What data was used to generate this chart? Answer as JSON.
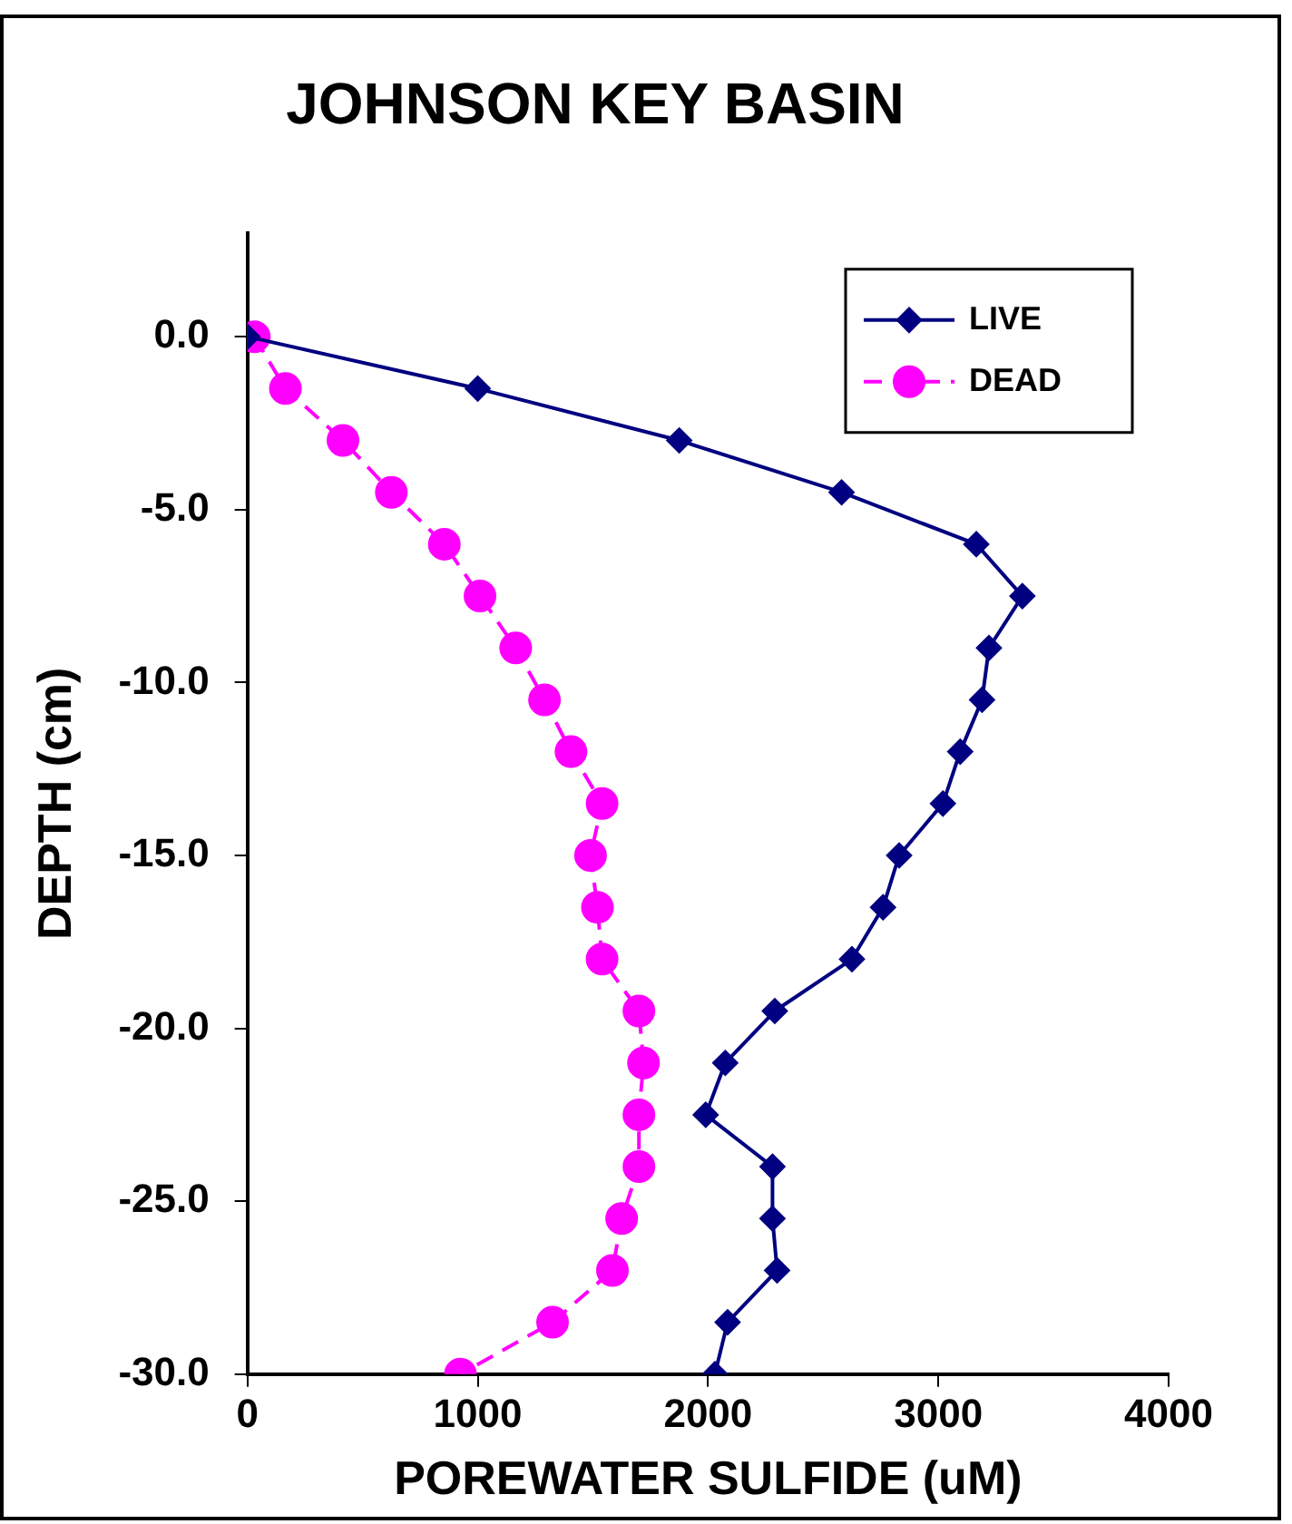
{
  "chart_data": {
    "type": "line",
    "title": "JOHNSON KEY BASIN",
    "xlabel": "POREWATER SULFIDE (uM)",
    "ylabel": "DEPTH (cm)",
    "xlim": [
      0,
      4000
    ],
    "xticks": [
      0,
      1000,
      2000,
      3000,
      4000
    ],
    "ylim": [
      -30,
      3
    ],
    "yticks": [
      {
        "value": 0,
        "label": "0.0"
      },
      {
        "value": -5,
        "label": "-5.0"
      },
      {
        "value": -10,
        "label": "-10.0"
      },
      {
        "value": -15,
        "label": "-15.0"
      },
      {
        "value": -20,
        "label": "-20.0"
      },
      {
        "value": -25,
        "label": "-25.0"
      },
      {
        "value": -30,
        "label": "-30.0"
      }
    ],
    "grid": false,
    "legend": "top right",
    "series": [
      {
        "name": "LIVE",
        "color": "#000080",
        "marker": "diamond",
        "line_style": "solid",
        "x": [
          0,
          1000,
          1875,
          2580,
          3165,
          3365,
          3220,
          3190,
          3095,
          3020,
          2830,
          2760,
          2625,
          2290,
          2075,
          1990,
          2280,
          2280,
          2300,
          2085,
          2030
        ],
        "values": [
          0,
          -1.5,
          -3,
          -4.5,
          -6,
          -7.5,
          -9,
          -10.5,
          -12,
          -13.5,
          -15,
          -16.5,
          -18,
          -19.5,
          -21,
          -22.5,
          -24,
          -25.5,
          -27,
          -28.5,
          -30
        ]
      },
      {
        "name": "DEAD",
        "color": "#ff00ff",
        "marker": "circle",
        "line_style": "dashed",
        "x": [
          30,
          165,
          415,
          625,
          855,
          1010,
          1165,
          1290,
          1405,
          1540,
          1490,
          1520,
          1540,
          1700,
          1720,
          1700,
          1700,
          1625,
          1585,
          1325,
          925
        ],
        "values": [
          0,
          -1.5,
          -3,
          -4.5,
          -6,
          -7.5,
          -9,
          -10.5,
          -12,
          -13.5,
          -15,
          -16.5,
          -18,
          -19.5,
          -21,
          -22.5,
          -24,
          -25.5,
          -27,
          -28.5,
          -30
        ]
      }
    ]
  }
}
